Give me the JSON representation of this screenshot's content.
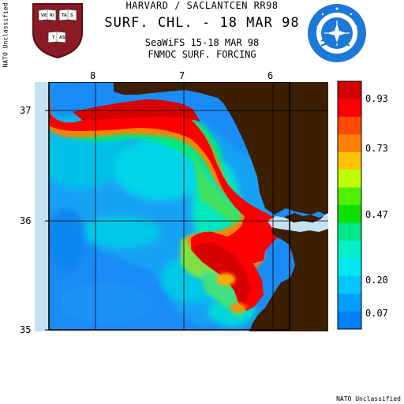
{
  "side_label": "NATO Unclassified",
  "footer_label": "NATO Unclassified",
  "title_line1": "HARVARD / SACLANTCEN RR98",
  "title_line2": "SURF. CHL. - 18 MAR 98",
  "subtitle_line1": "SeaWiFS 15-18 MAR 98",
  "subtitle_line2": "FNMOC SURF. FORCING",
  "lon_ticks": [
    "8",
    "7",
    "6"
  ],
  "lat_ticks": [
    "37",
    "36",
    "35"
  ],
  "legend_labels": [
    "0.93",
    "0.73",
    "0.47",
    "0.20",
    "0.07"
  ],
  "legend_colors": [
    "#d20000",
    "#ff0000",
    "#ff4a00",
    "#ff8000",
    "#ffc400",
    "#c0ff00",
    "#50f000",
    "#10e000",
    "#00e888",
    "#00f0c8",
    "#00e8f0",
    "#00c8ff",
    "#00a0ff",
    "#0080ff"
  ],
  "colors": {
    "land": "#3c1e00",
    "missing": "#c6e2f2",
    "background": "#ffffff"
  },
  "logos": {
    "left": "harvard-shield",
    "right": "saclantcen-emblem"
  }
}
